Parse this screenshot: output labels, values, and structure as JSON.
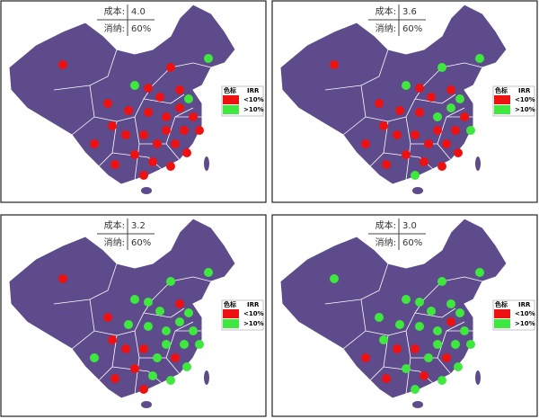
{
  "panels": [
    {
      "cost_label": "成本:",
      "cost": "4.0",
      "consumption_label": "消纳:",
      "consumption": "60%",
      "legend": {
        "title": "色标",
        "header": "IRR",
        "low": "<10%",
        "high": ">10%"
      }
    },
    {
      "cost_label": "成本:",
      "cost": "3.6",
      "consumption_label": "消纳:",
      "consumption": "60%",
      "legend": {
        "title": "色标",
        "header": "IRR",
        "low": "<10%",
        "high": ">10%"
      }
    },
    {
      "cost_label": "成本:",
      "cost": "3.2",
      "consumption_label": "消纳:",
      "consumption": "60%",
      "legend": {
        "title": "色标",
        "header": "IRR",
        "low": "<10%",
        "high": ">10%"
      }
    },
    {
      "cost_label": "成本:",
      "cost": "3.0",
      "consumption_label": "消纳:",
      "consumption": "60%",
      "legend": {
        "title": "色标",
        "header": "IRR",
        "low": "<10%",
        "high": ">10%"
      }
    }
  ]
}
